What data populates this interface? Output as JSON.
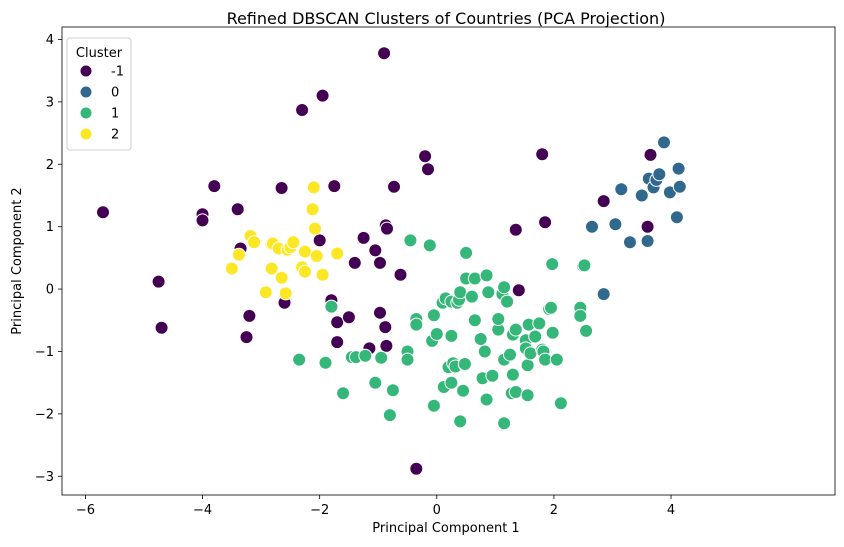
{
  "chart_data": {
    "type": "scatter",
    "title": "Refined DBSCAN Clusters of Countries (PCA Projection)",
    "xlabel": "Principal Component 1",
    "ylabel": "Principal Component 2",
    "xlim": [
      -6.4,
      6.8
    ],
    "ylim": [
      -3.3,
      4.2
    ],
    "xticks": [
      -6,
      -4,
      -2,
      0,
      2,
      4
    ],
    "yticks": [
      -3,
      -2,
      -1,
      0,
      1,
      2,
      3,
      4
    ],
    "xtick_labels": [
      "−6",
      "−4",
      "−2",
      "0",
      "2",
      "4"
    ],
    "ytick_labels": [
      "−3",
      "−2",
      "−1",
      "0",
      "1",
      "2",
      "3",
      "4"
    ],
    "grid": false,
    "legend": {
      "title": "Cluster",
      "placement": "top-left"
    },
    "series": [
      {
        "name": "-1",
        "color": "#440154",
        "points": [
          [
            -5.7,
            1.23
          ],
          [
            -4.75,
            0.12
          ],
          [
            -4.7,
            -0.62
          ],
          [
            -4.0,
            1.2
          ],
          [
            -4.0,
            1.1
          ],
          [
            -3.8,
            1.65
          ],
          [
            -3.4,
            1.28
          ],
          [
            -3.35,
            0.65
          ],
          [
            -3.25,
            -0.77
          ],
          [
            -3.2,
            -0.43
          ],
          [
            -2.65,
            1.62
          ],
          [
            -2.6,
            -0.22
          ],
          [
            -2.3,
            2.87
          ],
          [
            -2.0,
            0.78
          ],
          [
            -1.95,
            3.1
          ],
          [
            -1.8,
            -0.18
          ],
          [
            -1.75,
            1.65
          ],
          [
            -1.7,
            -0.53
          ],
          [
            -1.7,
            -0.85
          ],
          [
            -1.5,
            -0.45
          ],
          [
            -1.4,
            0.42
          ],
          [
            -1.25,
            0.82
          ],
          [
            -1.15,
            -0.95
          ],
          [
            -1.05,
            0.62
          ],
          [
            -0.97,
            0.42
          ],
          [
            -0.97,
            -0.38
          ],
          [
            -0.9,
            3.78
          ],
          [
            -0.88,
            -0.61
          ],
          [
            -0.87,
            1.02
          ],
          [
            -0.86,
            -0.91
          ],
          [
            -0.85,
            0.97
          ],
          [
            -0.73,
            1.64
          ],
          [
            -0.62,
            0.23
          ],
          [
            -0.35,
            -2.88
          ],
          [
            -0.2,
            2.13
          ],
          [
            -0.15,
            1.92
          ],
          [
            1.35,
            0.95
          ],
          [
            1.4,
            -0.02
          ],
          [
            1.8,
            2.16
          ],
          [
            1.85,
            1.07
          ],
          [
            2.85,
            1.41
          ],
          [
            3.6,
            1.0
          ],
          [
            3.65,
            2.15
          ]
        ]
      },
      {
        "name": "0",
        "color": "#31688e",
        "points": [
          [
            2.5,
            0.37
          ],
          [
            2.65,
            1.0
          ],
          [
            2.85,
            -0.08
          ],
          [
            3.05,
            1.04
          ],
          [
            3.15,
            1.6
          ],
          [
            3.3,
            0.75
          ],
          [
            3.5,
            1.5
          ],
          [
            3.6,
            0.77
          ],
          [
            3.62,
            1.77
          ],
          [
            3.7,
            1.63
          ],
          [
            3.75,
            1.75
          ],
          [
            3.8,
            1.84
          ],
          [
            3.88,
            2.35
          ],
          [
            3.98,
            1.55
          ],
          [
            4.1,
            1.15
          ],
          [
            4.13,
            1.93
          ],
          [
            4.15,
            1.64
          ]
        ]
      },
      {
        "name": "1",
        "color": "#35b779",
        "points": [
          [
            -2.35,
            -1.13
          ],
          [
            -1.9,
            -1.18
          ],
          [
            -1.8,
            -0.28
          ],
          [
            -1.6,
            -1.67
          ],
          [
            -1.45,
            -1.09
          ],
          [
            -1.38,
            -1.09
          ],
          [
            -1.22,
            -1.07
          ],
          [
            -1.05,
            -1.5
          ],
          [
            -0.95,
            -1.1
          ],
          [
            -0.8,
            -2.02
          ],
          [
            -0.75,
            -1.62
          ],
          [
            -0.5,
            -1.0
          ],
          [
            -0.5,
            -1.13
          ],
          [
            -0.45,
            0.78
          ],
          [
            -0.35,
            -0.48
          ],
          [
            -0.35,
            -0.57
          ],
          [
            -0.12,
            0.7
          ],
          [
            -0.08,
            -0.83
          ],
          [
            -0.05,
            -1.87
          ],
          [
            -0.05,
            -0.42
          ],
          [
            0.0,
            -0.72
          ],
          [
            0.1,
            -0.22
          ],
          [
            0.12,
            -1.57
          ],
          [
            0.15,
            -0.15
          ],
          [
            0.2,
            -1.25
          ],
          [
            0.25,
            -0.2
          ],
          [
            0.25,
            -0.75
          ],
          [
            0.25,
            -1.5
          ],
          [
            0.28,
            -1.19
          ],
          [
            0.32,
            -1.24
          ],
          [
            0.35,
            -0.22
          ],
          [
            0.38,
            -0.17
          ],
          [
            0.4,
            -0.05
          ],
          [
            0.4,
            -2.12
          ],
          [
            0.45,
            -1.63
          ],
          [
            0.48,
            -1.21
          ],
          [
            0.48,
            -1.2
          ],
          [
            0.5,
            0.17
          ],
          [
            0.5,
            0.58
          ],
          [
            0.6,
            -0.12
          ],
          [
            0.65,
            0.17
          ],
          [
            0.65,
            -0.5
          ],
          [
            0.75,
            -0.8
          ],
          [
            0.78,
            -1.43
          ],
          [
            0.82,
            -1.0
          ],
          [
            0.85,
            -1.77
          ],
          [
            0.85,
            0.22
          ],
          [
            0.88,
            -0.05
          ],
          [
            0.95,
            -1.39
          ],
          [
            1.05,
            -0.65
          ],
          [
            1.05,
            -0.48
          ],
          [
            1.12,
            -0.08
          ],
          [
            1.15,
            0.03
          ],
          [
            1.15,
            -1.13
          ],
          [
            1.15,
            -2.15
          ],
          [
            1.2,
            -0.2
          ],
          [
            1.25,
            -1.05
          ],
          [
            1.28,
            -1.67
          ],
          [
            1.3,
            -0.73
          ],
          [
            1.3,
            -1.37
          ],
          [
            1.35,
            -0.65
          ],
          [
            1.35,
            -1.65
          ],
          [
            1.52,
            -0.82
          ],
          [
            1.52,
            -0.95
          ],
          [
            1.55,
            -1.22
          ],
          [
            1.55,
            -1.7
          ],
          [
            1.57,
            -0.57
          ],
          [
            1.6,
            -1.03
          ],
          [
            1.68,
            -0.76
          ],
          [
            1.75,
            -0.55
          ],
          [
            1.8,
            -0.97
          ],
          [
            1.82,
            -1.0
          ],
          [
            1.85,
            -1.13
          ],
          [
            1.92,
            -0.32
          ],
          [
            1.95,
            -0.3
          ],
          [
            1.97,
            0.4
          ],
          [
            1.98,
            -0.7
          ],
          [
            2.05,
            -1.13
          ],
          [
            2.12,
            -1.83
          ],
          [
            2.45,
            -0.3
          ],
          [
            2.45,
            -0.43
          ],
          [
            2.52,
            0.38
          ],
          [
            2.55,
            -0.67
          ]
        ]
      },
      {
        "name": "2",
        "color": "#fde725",
        "points": [
          [
            -3.5,
            0.33
          ],
          [
            -3.38,
            0.55
          ],
          [
            -3.18,
            0.85
          ],
          [
            -3.12,
            0.75
          ],
          [
            -2.92,
            -0.05
          ],
          [
            -2.82,
            0.72
          ],
          [
            -2.82,
            0.33
          ],
          [
            -2.8,
            0.73
          ],
          [
            -2.7,
            0.65
          ],
          [
            -2.65,
            0.18
          ],
          [
            -2.58,
            -0.07
          ],
          [
            -2.55,
            0.63
          ],
          [
            -2.5,
            0.67
          ],
          [
            -2.45,
            0.75
          ],
          [
            -2.3,
            0.35
          ],
          [
            -2.25,
            0.28
          ],
          [
            -2.25,
            0.6
          ],
          [
            -2.12,
            1.28
          ],
          [
            -2.1,
            1.63
          ],
          [
            -2.08,
            0.97
          ],
          [
            -2.05,
            0.53
          ],
          [
            -1.95,
            0.23
          ],
          [
            -1.7,
            0.57
          ]
        ]
      }
    ]
  }
}
